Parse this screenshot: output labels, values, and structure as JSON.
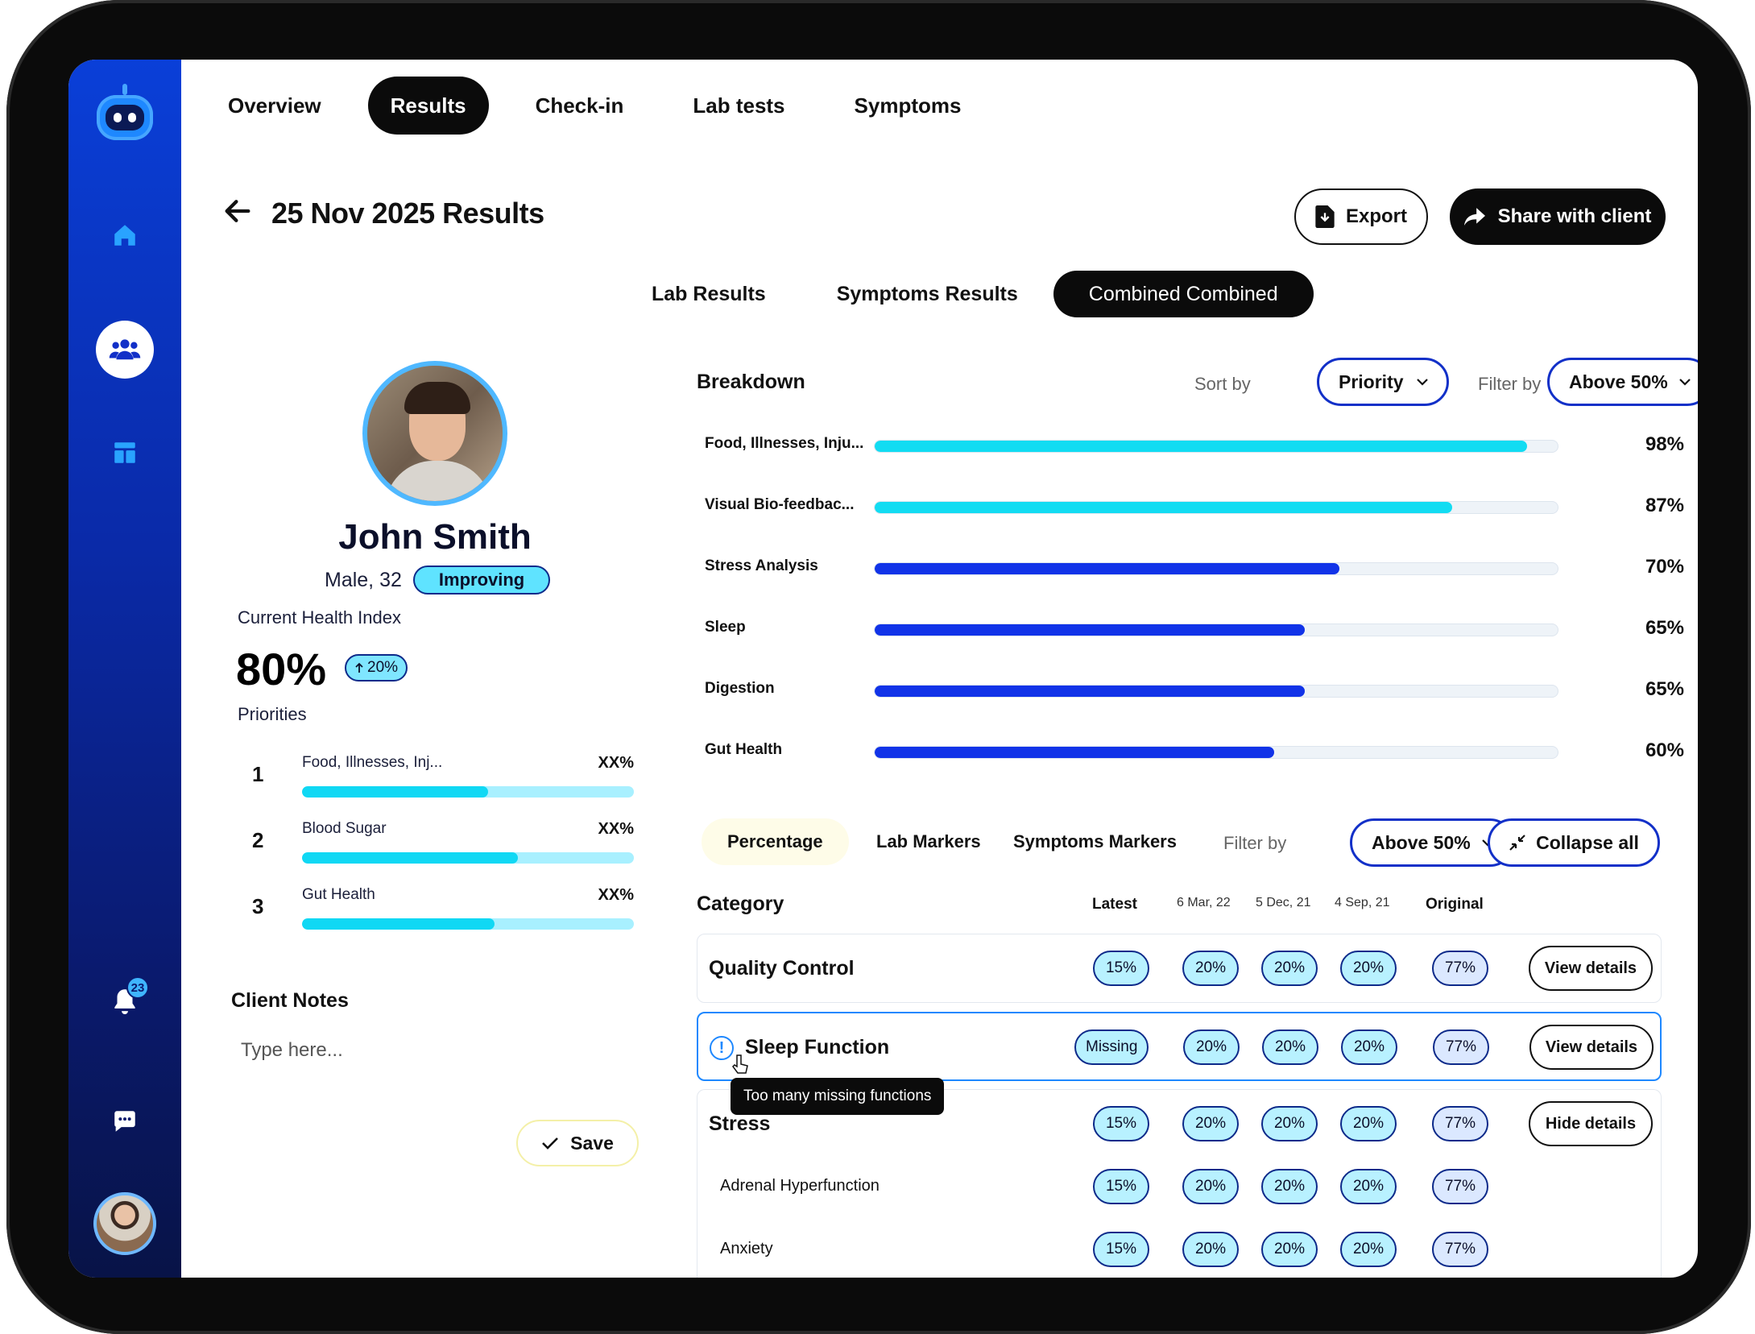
{
  "sidebar": {
    "notifications_count": "23",
    "icons": [
      "robot-logo-icon",
      "home-icon",
      "users-icon",
      "dashboard-icon",
      "bell-icon",
      "chat-icon"
    ]
  },
  "top_tabs": [
    {
      "label": "Overview"
    },
    {
      "label": "Results",
      "active": true
    },
    {
      "label": "Check-in"
    },
    {
      "label": "Lab tests"
    },
    {
      "label": "Symptoms"
    }
  ],
  "header": {
    "title": "25 Nov 2025 Results",
    "export_label": "Export",
    "share_label": "Share with client"
  },
  "sub_tabs": [
    {
      "label": "Lab Results"
    },
    {
      "label": "Symptoms Results"
    },
    {
      "label": "Combined Combined",
      "active": true
    }
  ],
  "profile": {
    "name": "John Smith",
    "meta": "Male, 32",
    "status": "Improving",
    "health_index_label": "Current Health Index",
    "health_index_value": "80%",
    "health_index_delta": "20%",
    "priorities_label": "Priorities",
    "priorities": [
      {
        "rank": "1",
        "name": "Food, Illnesses, Inj...",
        "value": "XX%",
        "progress": 0.56
      },
      {
        "rank": "2",
        "name": "Blood Sugar",
        "value": "XX%",
        "progress": 0.65
      },
      {
        "rank": "3",
        "name": "Gut Health",
        "value": "XX%",
        "progress": 0.58
      }
    ]
  },
  "notes": {
    "title": "Client Notes",
    "placeholder": "Type here...",
    "save_label": "Save"
  },
  "breakdown": {
    "title": "Breakdown",
    "sort_label": "Sort by",
    "sort_value": "Priority",
    "filter_label": "Filter by",
    "filter_value": "Above 50%",
    "items": [
      {
        "name": "Food, Illnesses, Inju...",
        "value": "98%",
        "progress": 0.955,
        "color": "#12dcf2"
      },
      {
        "name": "Visual Bio-feedbac...",
        "value": "87%",
        "progress": 0.845,
        "color": "#12dcf2"
      },
      {
        "name": "Stress Analysis",
        "value": "70%",
        "progress": 0.68,
        "color": "#1133e8"
      },
      {
        "name": "Sleep",
        "value": "65%",
        "progress": 0.63,
        "color": "#1133e8"
      },
      {
        "name": "Digestion",
        "value": "65%",
        "progress": 0.63,
        "color": "#1133e8"
      },
      {
        "name": "Gut Health",
        "value": "60%",
        "progress": 0.585,
        "color": "#1133e8"
      }
    ]
  },
  "category_tabs": [
    {
      "label": "Percentage",
      "active": true
    },
    {
      "label": "Lab Markers"
    },
    {
      "label": "Symptoms Markers"
    }
  ],
  "category_filter_label": "Filter by",
  "category_filter_value": "Above 50%",
  "collapse_label": "Collapse all",
  "table": {
    "category_header": "Category",
    "columns": [
      "Latest",
      "6 Mar, 22",
      "5 Dec, 21",
      "4 Sep, 21",
      "Original"
    ],
    "rows": [
      {
        "name": "Quality Control",
        "values": [
          "15%",
          "20%",
          "20%",
          "20%",
          "77%"
        ],
        "action": "View details"
      },
      {
        "name": "Sleep Function",
        "values": [
          "Missing",
          "20%",
          "20%",
          "20%",
          "77%"
        ],
        "action": "View details",
        "tooltip": "Too many missing functions"
      },
      {
        "name": "Stress",
        "values": [
          "15%",
          "20%",
          "20%",
          "20%",
          "77%"
        ],
        "action": "Hide details",
        "children": [
          {
            "name": "Adrenal Hyperfunction",
            "values": [
              "15%",
              "20%",
              "20%",
              "20%",
              "77%"
            ]
          },
          {
            "name": "Anxiety",
            "values": [
              "15%",
              "20%",
              "20%",
              "20%",
              "77%"
            ]
          }
        ]
      }
    ]
  }
}
